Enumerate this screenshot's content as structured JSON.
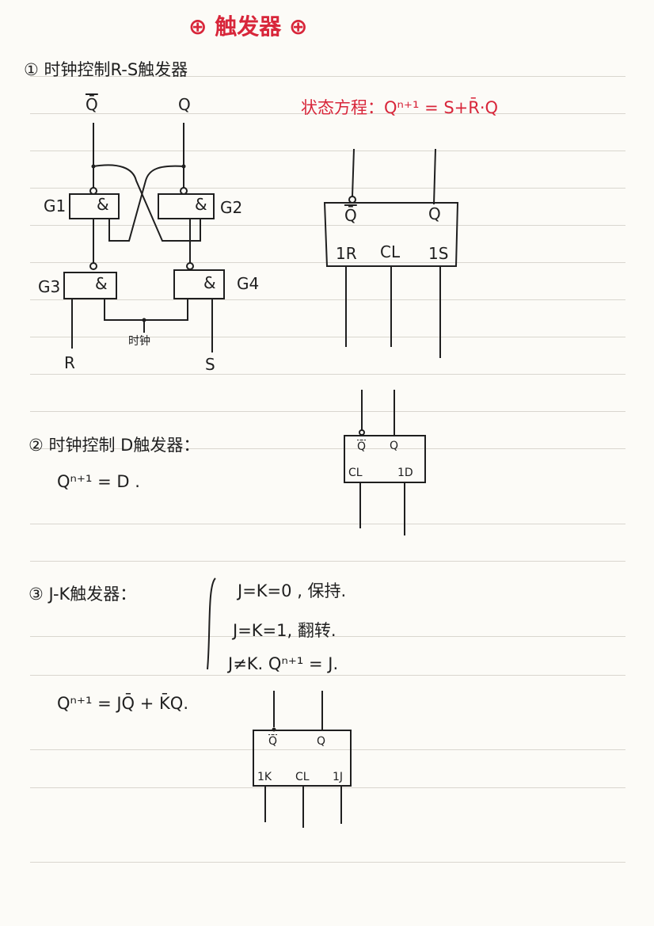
{
  "title": "触发器",
  "title_mark_left": "⊕",
  "title_mark_right": "⊕",
  "section1": {
    "heading": "① 时钟控制R-S触发器",
    "state_eq_label": "状态方程：",
    "state_eq": "Qⁿ⁺¹ = S+R̄·Q",
    "gate_symbol": "&",
    "gates": [
      "G1",
      "G2",
      "G3",
      "G4"
    ],
    "outputs": [
      "Q̄",
      "Q"
    ],
    "inputs": [
      "R",
      "S"
    ],
    "clock_label": "时钟",
    "block_pins_top": [
      "Q̄",
      "Q"
    ],
    "block_pins_bottom": [
      "1R",
      "CL",
      "1S"
    ]
  },
  "section2": {
    "heading": "② 时钟控制 D触发器：",
    "equation": "Qⁿ⁺¹ = D .",
    "block_pins_top": [
      "Q̄",
      "Q"
    ],
    "block_pins_bottom": [
      "CL",
      "1D"
    ]
  },
  "section3": {
    "heading": "③ J-K触发器：",
    "cases": [
      "J=K=0 , 保持.",
      "J=K=1, 翻转.",
      "J≠K.  Qⁿ⁺¹ = J."
    ],
    "equation": "Qⁿ⁺¹ = JQ̄ + K̄Q.",
    "block_pins_top": [
      "Q̄",
      "Q"
    ],
    "block_pins_bottom": [
      "1K",
      "CL",
      "1J"
    ]
  }
}
